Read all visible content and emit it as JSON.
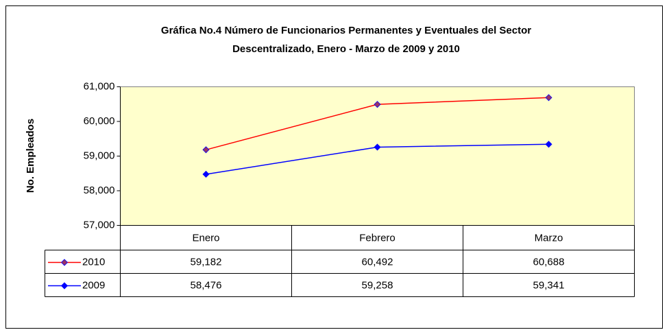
{
  "chart_data": {
    "type": "line",
    "title": [
      "Gráfica No.4 Número de Funcionarios Permanentes y Eventuales del Sector",
      "Descentralizado, Enero - Marzo de 2009 y 2010"
    ],
    "y_label": "No. Empleados",
    "categories": [
      "Enero",
      "Febrero",
      "Marzo"
    ],
    "series": [
      {
        "name": "2010",
        "color": "#ff0000",
        "marker_color": "#993366",
        "values": [
          59182,
          60492,
          60688
        ],
        "value_labels": [
          "59,182",
          "60,492",
          "60,688"
        ]
      },
      {
        "name": "2009",
        "color": "#0000ff",
        "marker_color": "#0000ff",
        "values": [
          58476,
          59258,
          59341
        ],
        "value_labels": [
          "58,476",
          "59,258",
          "59,341"
        ]
      }
    ],
    "ylim": [
      57000,
      61000
    ],
    "yticks": [
      {
        "value": 57000,
        "label": "57,000"
      },
      {
        "value": 58000,
        "label": "58,000"
      },
      {
        "value": 59000,
        "label": "59,000"
      },
      {
        "value": 60000,
        "label": "60,000"
      },
      {
        "value": 61000,
        "label": "61,000"
      }
    ],
    "plot_background": "#ffffcc",
    "data_table": true
  }
}
